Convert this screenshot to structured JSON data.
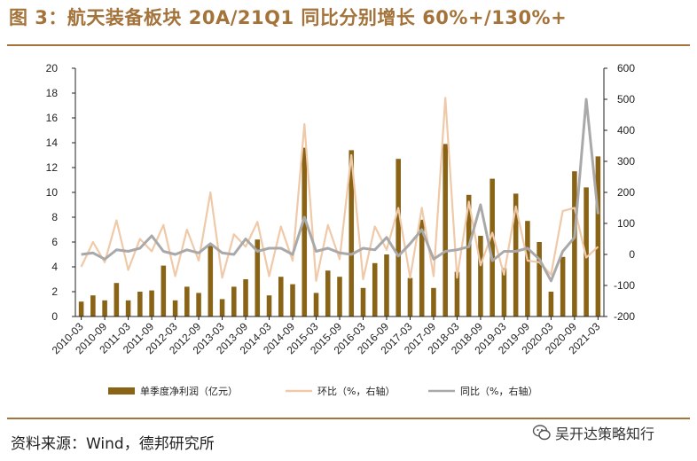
{
  "title": "图 3：航天装备板块 20A/21Q1 同比分别增长 60%+/130%+",
  "source": "资料来源：Wind，德邦研究所",
  "watermark": "吴开达策略知行",
  "colors": {
    "bar": "#8a6416",
    "qoq": "#f0c9a8",
    "yoy": "#a9a9a9",
    "title": "#a4733a",
    "axis": "#222222"
  },
  "chart_data": {
    "type": "bar+line",
    "left_axis": {
      "ylim": [
        0,
        20
      ],
      "ticks": [
        0,
        2,
        4,
        6,
        8,
        10,
        12,
        14,
        16,
        18,
        20
      ]
    },
    "right_axis": {
      "ylim": [
        -200,
        600
      ],
      "ticks": [
        -200,
        -100,
        0,
        100,
        200,
        300,
        400,
        500,
        600
      ]
    },
    "x_tick_labels": [
      "2010-03",
      "2010-09",
      "2011-03",
      "2011-09",
      "2012-03",
      "2012-09",
      "2013-03",
      "2013-09",
      "2014-03",
      "2014-09",
      "2015-03",
      "2015-09",
      "2016-03",
      "2016-09",
      "2017-03",
      "2017-09",
      "2018-03",
      "2018-09",
      "2019-03",
      "2019-09",
      "2020-03",
      "2020-09",
      "2021-03"
    ],
    "quarters": [
      "2010-03",
      "2010-06",
      "2010-09",
      "2010-12",
      "2011-03",
      "2011-06",
      "2011-09",
      "2011-12",
      "2012-03",
      "2012-06",
      "2012-09",
      "2012-12",
      "2013-03",
      "2013-06",
      "2013-09",
      "2013-12",
      "2014-03",
      "2014-06",
      "2014-09",
      "2014-12",
      "2015-03",
      "2015-06",
      "2015-09",
      "2015-12",
      "2016-03",
      "2016-06",
      "2016-09",
      "2016-12",
      "2017-03",
      "2017-06",
      "2017-09",
      "2017-12",
      "2018-03",
      "2018-06",
      "2018-09",
      "2018-12",
      "2019-03",
      "2019-06",
      "2019-09",
      "2019-12",
      "2020-03",
      "2020-06",
      "2020-09",
      "2020-12",
      "2021-03"
    ],
    "series": [
      {
        "name": "单季度净利润（亿元）",
        "axis": "left",
        "type": "bar",
        "values": [
          1.2,
          1.7,
          1.3,
          2.7,
          1.3,
          2.0,
          2.1,
          4.1,
          1.3,
          2.4,
          1.9,
          5.7,
          1.4,
          2.4,
          3.0,
          6.2,
          1.7,
          3.2,
          2.6,
          13.6,
          1.9,
          3.7,
          3.2,
          13.4,
          2.3,
          4.3,
          5.0,
          12.7,
          3.1,
          7.8,
          2.3,
          13.9,
          3.6,
          9.8,
          6.5,
          11.1,
          3.9,
          9.9,
          7.7,
          6.0,
          2.0,
          4.8,
          11.7,
          10.4,
          12.9
        ]
      },
      {
        "name": "环比（%，右轴）",
        "axis": "right",
        "type": "line",
        "values": [
          -40,
          40,
          -25,
          110,
          -50,
          50,
          10,
          95,
          -70,
          80,
          -20,
          200,
          -75,
          65,
          25,
          105,
          -70,
          90,
          -20,
          420,
          -85,
          95,
          -15,
          320,
          -80,
          90,
          15,
          150,
          -75,
          150,
          -70,
          505,
          -75,
          170,
          -35,
          70,
          -65,
          155,
          -20,
          -25,
          -65,
          140,
          150,
          -10,
          25
        ]
      },
      {
        "name": "同比（%，右轴）",
        "axis": "right",
        "type": "line",
        "values": [
          0,
          5,
          -15,
          15,
          10,
          20,
          60,
          10,
          0,
          15,
          5,
          35,
          5,
          0,
          50,
          10,
          20,
          20,
          0,
          120,
          10,
          20,
          5,
          0,
          20,
          15,
          55,
          -5,
          35,
          80,
          -15,
          10,
          15,
          25,
          160,
          -20,
          10,
          10,
          20,
          -15,
          -85,
          10,
          55,
          500,
          130
        ]
      }
    ]
  }
}
